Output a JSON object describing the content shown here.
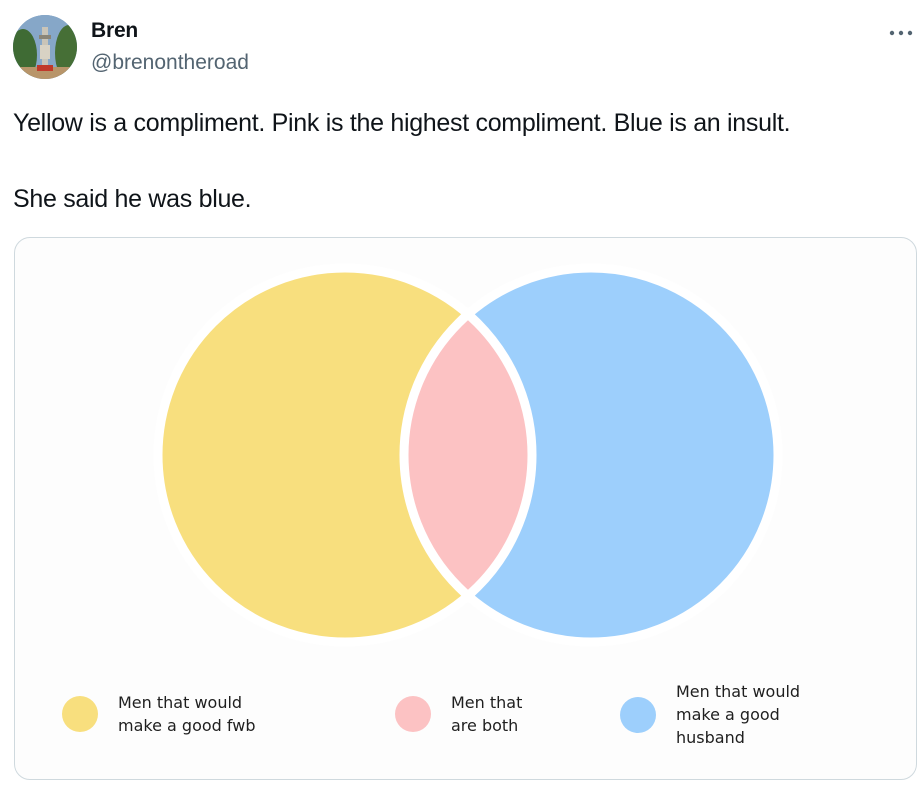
{
  "author": {
    "display_name": "Bren",
    "handle": "@brenontheroad",
    "avatar_icon": "avatar-photo"
  },
  "more_icon": "more-horizontal-icon",
  "tweet": {
    "line1": "Yellow is a compliment. Pink is the highest compliment. Blue is an insult.",
    "line2": "She said he was blue."
  },
  "venn": {
    "left_color": "#f8df7e",
    "right_color": "#9dcffc",
    "overlap_color": "#fcc2c3",
    "legend": [
      {
        "label": "Men that would\nmake a good fwb",
        "color": "#f8df7e"
      },
      {
        "label": "Men that\nare both",
        "color": "#fcc2c3"
      },
      {
        "label": "Men that would\nmake a good\nhusband",
        "color": "#9dcffc"
      }
    ]
  }
}
